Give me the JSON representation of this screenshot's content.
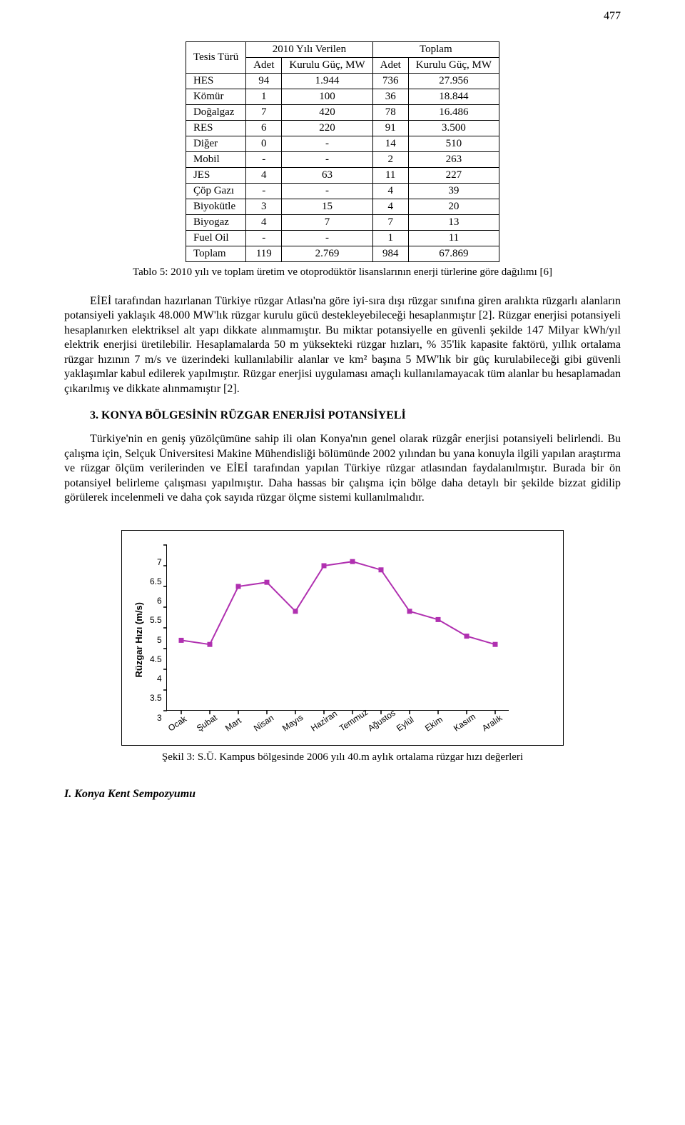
{
  "page_number": "477",
  "table": {
    "header_row1": [
      "Tesis Türü",
      "2010 Yılı Verilen",
      "Toplam"
    ],
    "header_row2": [
      "Adet",
      "Kurulu Güç, MW",
      "Adet",
      "Kurulu Güç, MW"
    ],
    "rows": [
      [
        "HES",
        "94",
        "1.944",
        "736",
        "27.956"
      ],
      [
        "Kömür",
        "1",
        "100",
        "36",
        "18.844"
      ],
      [
        "Doğalgaz",
        "7",
        "420",
        "78",
        "16.486"
      ],
      [
        "RES",
        "6",
        "220",
        "91",
        "3.500"
      ],
      [
        "Diğer",
        "0",
        "-",
        "14",
        "510"
      ],
      [
        "Mobil",
        "-",
        "-",
        "2",
        "263"
      ],
      [
        "JES",
        "4",
        "63",
        "11",
        "227"
      ],
      [
        "Çöp Gazı",
        "-",
        "-",
        "4",
        "39"
      ],
      [
        "Biyokütle",
        "3",
        "15",
        "4",
        "20"
      ],
      [
        "Biyogaz",
        "4",
        "7",
        "7",
        "13"
      ],
      [
        "Fuel Oil",
        "-",
        "-",
        "1",
        "11"
      ],
      [
        "Toplam",
        "119",
        "2.769",
        "984",
        "67.869"
      ]
    ],
    "caption": "Tablo 5: 2010 yılı ve toplam üretim ve otoprodüktör lisanslarının enerji türlerine göre dağılımı [6]"
  },
  "paragraph1": "EİEİ tarafından hazırlanan Türkiye rüzgar Atlası'na göre iyi-sıra dışı rüzgar sınıfına giren aralıkta rüzgarlı alanların potansiyeli yaklaşık 48.000 MW'lık rüzgar kurulu gücü destekleyebileceği hesaplanmıştır [2]. Rüzgar enerjisi potansiyeli hesaplanırken elektriksel alt yapı dikkate alınmamıştır. Bu miktar potansiyelle en güvenli şekilde 147 Milyar kWh/yıl elektrik enerjisi üretilebilir. Hesaplamalarda 50 m yüksekteki rüzgar hızları, % 35'lik kapasite faktörü, yıllık ortalama rüzgar hızının 7 m/s ve üzerindeki kullanılabilir alanlar ve km² başına 5 MW'lık bir güç kurulabileceği gibi güvenli yaklaşımlar kabul edilerek yapılmıştır. Rüzgar enerjisi uygulaması amaçlı kullanılamayacak tüm alanlar bu hesaplamadan çıkarılmış ve dikkate alınmamıştır [2].",
  "section_heading": "3. KONYA BÖLGESİNİN RÜZGAR ENERJİSİ POTANSİYELİ",
  "paragraph2": "Türkiye'nin en geniş yüzölçümüne sahip ili olan Konya'nın genel olarak rüzgâr enerjisi potansiyeli belirlendi. Bu çalışma için, Selçuk Üniversitesi Makine Mühendisliği bölümünde 2002 yılından bu yana konuyla ilgili yapılan araştırma ve rüzgar ölçüm verilerinden ve EİEİ tarafından yapılan Türkiye rüzgar atlasından faydalanılmıştır. Burada bir ön potansiyel belirleme çalışması yapılmıştır. Daha hassas bir çalışma için bölge daha detaylı bir şekilde bizzat gidilip görülerek incelenmeli ve daha çok sayıda rüzgar ölçme sistemi kullanılmalıdır.",
  "chart": {
    "type": "line",
    "y_title": "Rüzgar Hızı (m/s)",
    "ylim": [
      3,
      7
    ],
    "ytick_step": 0.5,
    "y_ticks": [
      "7",
      "6.5",
      "6",
      "5.5",
      "5",
      "4.5",
      "4",
      "3.5",
      "3"
    ],
    "x_labels": [
      "Ocak",
      "Şubat",
      "Mart",
      "Nisan",
      "Mayıs",
      "Haziran",
      "Temmuz",
      "Ağustos",
      "Eylül",
      "Ekim",
      "Kasım",
      "Aralık"
    ],
    "values": [
      4.7,
      4.6,
      6.0,
      6.1,
      5.4,
      6.5,
      6.6,
      6.4,
      5.4,
      5.2,
      4.8,
      4.6
    ],
    "marker": "square",
    "marker_size": 7,
    "line_color": "#b030b0",
    "line_width": 2,
    "background_color": "#ffffff",
    "caption": "Şekil 3: S.Ü. Kampus bölgesinde 2006 yılı 40.m aylık ortalama rüzgar hızı değerleri"
  },
  "footer": "I. Konya Kent Sempozyumu"
}
